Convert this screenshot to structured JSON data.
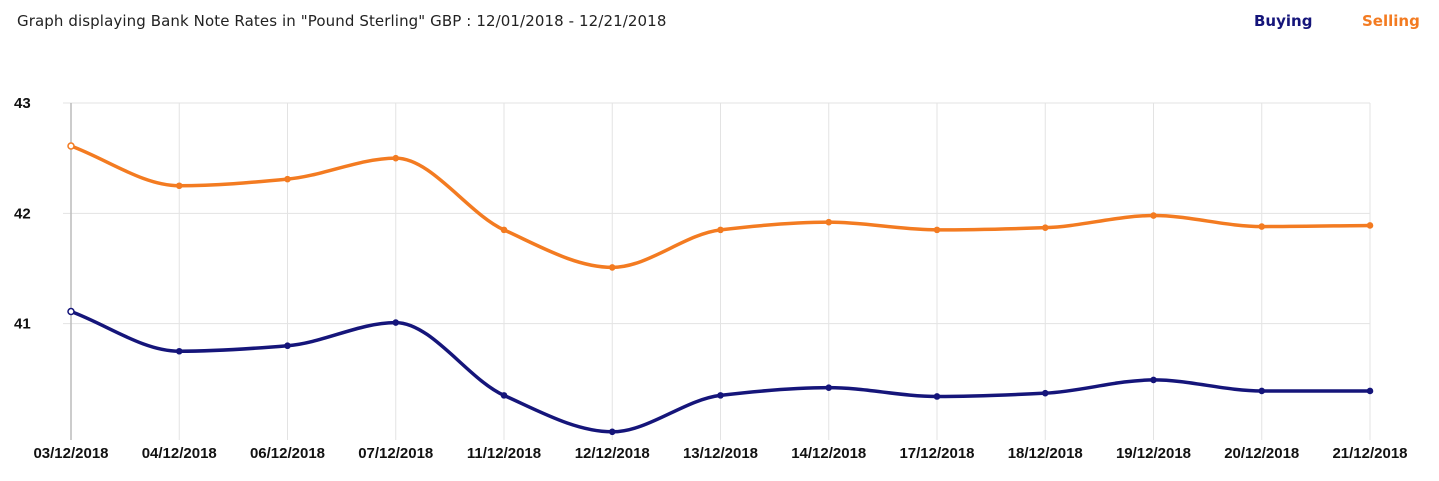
{
  "title": "Graph displaying Bank Note Rates in \"Pound Sterling\" GBP : 12/01/2018 - 12/21/2018",
  "legend": {
    "buying_label": "Buying",
    "selling_label": "Selling"
  },
  "colors": {
    "buying": "#15157a",
    "selling": "#f37b21",
    "grid": "#e3e3e3",
    "axis": "#bbbbbb"
  },
  "chart_data": {
    "type": "line",
    "categories": [
      "03/12/2018",
      "04/12/2018",
      "06/12/2018",
      "07/12/2018",
      "11/12/2018",
      "12/12/2018",
      "13/12/2018",
      "14/12/2018",
      "17/12/2018",
      "18/12/2018",
      "19/12/2018",
      "20/12/2018",
      "21/12/2018"
    ],
    "series": [
      {
        "name": "Buying",
        "values": [
          41.11,
          40.75,
          40.8,
          41.01,
          40.35,
          40.02,
          40.35,
          40.42,
          40.34,
          40.37,
          40.49,
          40.39,
          40.39
        ]
      },
      {
        "name": "Selling",
        "values": [
          42.61,
          42.25,
          42.31,
          42.5,
          41.85,
          41.51,
          41.85,
          41.92,
          41.85,
          41.87,
          41.98,
          41.88,
          41.89
        ]
      }
    ],
    "yticks": [
      41,
      42,
      43
    ],
    "ylim": [
      40,
      43
    ],
    "grid": true,
    "legend_position": "top-right"
  }
}
